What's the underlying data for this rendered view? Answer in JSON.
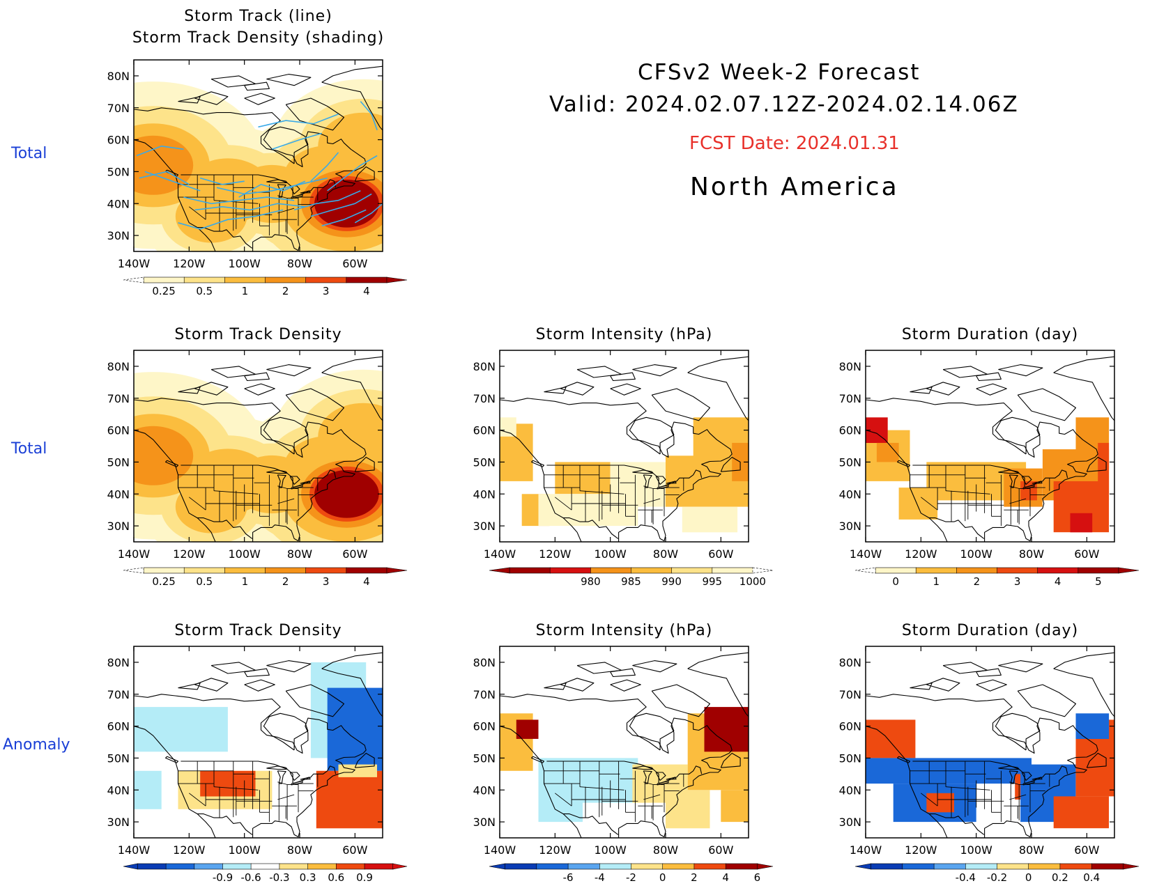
{
  "header": {
    "line1": "CFSv2 Week-2 Forecast",
    "line2": "Valid: 2024.02.07.12Z-2024.02.14.06Z",
    "fcst_date": "FCST Date: 2024.01.31",
    "region": "North America"
  },
  "row_labels": [
    "Total",
    "Total",
    "Anomaly"
  ],
  "axes": {
    "lat_ticks": [
      "80N",
      "70N",
      "60N",
      "50N",
      "40N",
      "30N"
    ],
    "lon_ticks": [
      "140W",
      "120W",
      "100W",
      "80W",
      "60W"
    ],
    "lon_range": [
      -140,
      -50
    ],
    "lat_range": [
      25,
      85
    ]
  },
  "colors": {
    "red_dark": "#a00000",
    "red": "#d61010",
    "orange_red": "#ee4a10",
    "orange": "#f5931a",
    "light_orange": "#fbbd3e",
    "yellow": "#fde38a",
    "pale_yellow": "#fef6c8",
    "light_blue": "#b4ecf7",
    "mid_blue": "#5aa5ef",
    "blue": "#1a68d8",
    "dark_blue": "#0a3cb4",
    "track_line": "#3aaae8"
  },
  "chart_data": [
    {
      "id": "track_total",
      "type": "heatmap",
      "title": "Storm Track (line)",
      "subtitle": "Storm Track Density (shading)",
      "colorbar": {
        "labels": [
          "0.25",
          "0.5",
          "1",
          "2",
          "3",
          "4"
        ]
      },
      "tracks": [
        [
          [
            -139,
            55
          ],
          [
            -130,
            58
          ],
          [
            -122,
            57
          ]
        ],
        [
          [
            -136,
            50
          ],
          [
            -126,
            47
          ],
          [
            -116,
            44
          ]
        ],
        [
          [
            -138,
            48
          ],
          [
            -128,
            50
          ],
          [
            -120,
            46
          ]
        ],
        [
          [
            -122,
            42
          ],
          [
            -112,
            40
          ],
          [
            -102,
            41
          ],
          [
            -92,
            42
          ],
          [
            -82,
            41
          ]
        ],
        [
          [
            -118,
            38
          ],
          [
            -108,
            39
          ],
          [
            -98,
            38
          ],
          [
            -88,
            40
          ],
          [
            -78,
            39
          ]
        ],
        [
          [
            -124,
            34
          ],
          [
            -116,
            32
          ],
          [
            -106,
            35
          ],
          [
            -96,
            36
          ],
          [
            -86,
            38
          ]
        ],
        [
          [
            -110,
            45
          ],
          [
            -100,
            43
          ],
          [
            -90,
            44
          ],
          [
            -80,
            46
          ],
          [
            -70,
            48
          ]
        ],
        [
          [
            -82,
            38
          ],
          [
            -74,
            40
          ],
          [
            -66,
            41
          ],
          [
            -58,
            44
          ]
        ],
        [
          [
            -76,
            36
          ],
          [
            -68,
            38
          ],
          [
            -60,
            40
          ],
          [
            -54,
            43
          ]
        ],
        [
          [
            -72,
            33
          ],
          [
            -64,
            35
          ],
          [
            -56,
            38
          ]
        ],
        [
          [
            -70,
            44
          ],
          [
            -64,
            48
          ],
          [
            -58,
            52
          ],
          [
            -52,
            55
          ]
        ],
        [
          [
            -76,
            47
          ],
          [
            -70,
            52
          ],
          [
            -66,
            56
          ]
        ],
        [
          [
            -95,
            64
          ],
          [
            -85,
            66
          ],
          [
            -75,
            65
          ],
          [
            -66,
            68
          ]
        ],
        [
          [
            -90,
            57
          ],
          [
            -80,
            60
          ],
          [
            -72,
            62
          ]
        ],
        [
          [
            -58,
            72
          ],
          [
            -54,
            68
          ],
          [
            -52,
            63
          ]
        ],
        [
          [
            -102,
            42
          ],
          [
            -94,
            46
          ],
          [
            -86,
            44
          ],
          [
            -78,
            47
          ]
        ],
        [
          [
            -116,
            48
          ],
          [
            -108,
            46
          ],
          [
            -100,
            47
          ]
        ],
        [
          [
            -60,
            34
          ],
          [
            -54,
            37
          ],
          [
            -50,
            40
          ]
        ]
      ],
      "density": [
        {
          "lon": -133,
          "lat": 52,
          "value": 2.5
        },
        {
          "lon": -106,
          "lat": 44,
          "value": 1.5
        },
        {
          "lon": -90,
          "lat": 43,
          "value": 1.2
        },
        {
          "lon": -112,
          "lat": 36,
          "value": 1.0
        },
        {
          "lon": -63,
          "lat": 40,
          "value": 4.5
        },
        {
          "lon": -70,
          "lat": 48,
          "value": 1.5
        },
        {
          "lon": -57,
          "lat": 58,
          "value": 1.6
        },
        {
          "lon": -80,
          "lat": 36,
          "value": 0.8
        }
      ]
    },
    {
      "id": "density_total",
      "type": "heatmap",
      "title": "Storm Track Density",
      "colorbar": {
        "labels": [
          "0.25",
          "0.5",
          "1",
          "2",
          "3",
          "4"
        ]
      },
      "density": [
        {
          "lon": -133,
          "lat": 52,
          "value": 2.5
        },
        {
          "lon": -106,
          "lat": 44,
          "value": 1.5
        },
        {
          "lon": -90,
          "lat": 43,
          "value": 1.2
        },
        {
          "lon": -112,
          "lat": 36,
          "value": 1.0
        },
        {
          "lon": -63,
          "lat": 40,
          "value": 4.5
        },
        {
          "lon": -70,
          "lat": 48,
          "value": 1.5
        },
        {
          "lon": -57,
          "lat": 58,
          "value": 1.6
        },
        {
          "lon": -80,
          "lat": 36,
          "value": 0.8
        }
      ]
    },
    {
      "id": "intensity_total",
      "type": "heatmap",
      "title": "Storm Intensity (hPa)",
      "colorbar": {
        "labels": [
          "980",
          "985",
          "990",
          "995",
          "1000"
        ]
      },
      "cells": [
        {
          "lon": [
            -140,
            -128
          ],
          "lat": [
            44,
            62
          ],
          "value": 993
        },
        {
          "lon": [
            -140,
            -134
          ],
          "lat": [
            58,
            64
          ],
          "value": 996
        },
        {
          "lon": [
            -132,
            -122
          ],
          "lat": [
            30,
            40
          ],
          "value": 994
        },
        {
          "lon": [
            -120,
            -100
          ],
          "lat": [
            40,
            50
          ],
          "value": 994
        },
        {
          "lon": [
            -126,
            -90
          ],
          "lat": [
            30,
            40
          ],
          "value": 998
        },
        {
          "lon": [
            -100,
            -76
          ],
          "lat": [
            36,
            50
          ],
          "value": 998
        },
        {
          "lon": [
            -80,
            -50
          ],
          "lat": [
            36,
            52
          ],
          "value": 992
        },
        {
          "lon": [
            -70,
            -50
          ],
          "lat": [
            50,
            64
          ],
          "value": 991
        },
        {
          "lon": [
            -56,
            -50
          ],
          "lat": [
            44,
            56
          ],
          "value": 987
        },
        {
          "lon": [
            -74,
            -54
          ],
          "lat": [
            28,
            36
          ],
          "value": 997
        }
      ]
    },
    {
      "id": "duration_total",
      "type": "heatmap",
      "title": "Storm Duration (day)",
      "colorbar": {
        "labels": [
          "0",
          "1",
          "2",
          "3",
          "4",
          "5"
        ]
      },
      "cells": [
        {
          "lon": [
            -140,
            -124
          ],
          "lat": [
            44,
            60
          ],
          "value": 1.6
        },
        {
          "lon": [
            -140,
            -132
          ],
          "lat": [
            56,
            64
          ],
          "value": 4.2
        },
        {
          "lon": [
            -136,
            -128
          ],
          "lat": [
            50,
            56
          ],
          "value": 2.8
        },
        {
          "lon": [
            -128,
            -114
          ],
          "lat": [
            32,
            42
          ],
          "value": 1.4
        },
        {
          "lon": [
            -118,
            -82
          ],
          "lat": [
            38,
            50
          ],
          "value": 1.6
        },
        {
          "lon": [
            -90,
            -76
          ],
          "lat": [
            36,
            48
          ],
          "value": 2.6
        },
        {
          "lon": [
            -84,
            -78
          ],
          "lat": [
            38,
            44
          ],
          "value": 3.6
        },
        {
          "lon": [
            -76,
            -52
          ],
          "lat": [
            38,
            54
          ],
          "value": 2.6
        },
        {
          "lon": [
            -64,
            -52
          ],
          "lat": [
            48,
            64
          ],
          "value": 2.3
        },
        {
          "lon": [
            -72,
            -52
          ],
          "lat": [
            28,
            44
          ],
          "value": 3.6
        },
        {
          "lon": [
            -66,
            -58
          ],
          "lat": [
            28,
            34
          ],
          "value": 4.3
        },
        {
          "lon": [
            -56,
            -52
          ],
          "lat": [
            40,
            56
          ],
          "value": 3.8
        }
      ]
    },
    {
      "id": "density_anom",
      "type": "heatmap",
      "title": "Storm Track Density",
      "colorbar": {
        "labels": [
          "-0.9",
          "-0.6",
          "-0.3",
          "0.3",
          "0.6",
          "0.9"
        ]
      },
      "cells": [
        {
          "lon": [
            -140,
            -106
          ],
          "lat": [
            52,
            66
          ],
          "value": -0.35
        },
        {
          "lon": [
            -76,
            -56
          ],
          "lat": [
            50,
            80
          ],
          "value": -0.35
        },
        {
          "lon": [
            -70,
            -50
          ],
          "lat": [
            46,
            72
          ],
          "value": -0.65
        },
        {
          "lon": [
            -140,
            -130
          ],
          "lat": [
            34,
            46
          ],
          "value": -0.35
        },
        {
          "lon": [
            -124,
            -90
          ],
          "lat": [
            34,
            46
          ],
          "value": 0.45
        },
        {
          "lon": [
            -116,
            -96
          ],
          "lat": [
            38,
            46
          ],
          "value": 0.75
        },
        {
          "lon": [
            -74,
            -50
          ],
          "lat": [
            28,
            46
          ],
          "value": 0.75
        },
        {
          "lon": [
            -66,
            -52
          ],
          "lat": [
            44,
            48
          ],
          "value": 0.45
        }
      ]
    },
    {
      "id": "intensity_anom",
      "type": "heatmap",
      "title": "Storm Intensity (hPa)",
      "colorbar": {
        "labels": [
          "-6",
          "-4",
          "-2",
          "0",
          "2",
          "4",
          "6"
        ]
      },
      "cells": [
        {
          "lon": [
            -140,
            -128
          ],
          "lat": [
            46,
            64
          ],
          "value": 3.5
        },
        {
          "lon": [
            -134,
            -126
          ],
          "lat": [
            56,
            62
          ],
          "value": 6.5
        },
        {
          "lon": [
            -126,
            -90
          ],
          "lat": [
            36,
            50
          ],
          "value": -1.0
        },
        {
          "lon": [
            -126,
            -110
          ],
          "lat": [
            30,
            38
          ],
          "value": -1.5
        },
        {
          "lon": [
            -92,
            -72
          ],
          "lat": [
            36,
            48
          ],
          "value": 1.2
        },
        {
          "lon": [
            -80,
            -64
          ],
          "lat": [
            28,
            40
          ],
          "value": 1.3
        },
        {
          "lon": [
            -72,
            -50
          ],
          "lat": [
            40,
            64
          ],
          "value": 3.5
        },
        {
          "lon": [
            -66,
            -50
          ],
          "lat": [
            52,
            66
          ],
          "value": 6.5
        },
        {
          "lon": [
            -60,
            -50
          ],
          "lat": [
            30,
            40
          ],
          "value": 2.5
        }
      ]
    },
    {
      "id": "duration_anom",
      "type": "heatmap",
      "title": "Storm Duration (day)",
      "colorbar": {
        "labels": [
          "-0.4",
          "-0.2",
          "0",
          "0.2",
          "0.4"
        ]
      },
      "cells": [
        {
          "lon": [
            -140,
            -122
          ],
          "lat": [
            50,
            62
          ],
          "value": 0.35
        },
        {
          "lon": [
            -140,
            -80
          ],
          "lat": [
            42,
            50
          ],
          "value": -0.35
        },
        {
          "lon": [
            -130,
            -100
          ],
          "lat": [
            30,
            42
          ],
          "value": -0.35
        },
        {
          "lon": [
            -118,
            -108
          ],
          "lat": [
            33,
            39
          ],
          "value": 0.35
        },
        {
          "lon": [
            -86,
            -78
          ],
          "lat": [
            37,
            45
          ],
          "value": 0.3
        },
        {
          "lon": [
            -84,
            -64
          ],
          "lat": [
            30,
            48
          ],
          "value": -0.35
        },
        {
          "lon": [
            -64,
            -50
          ],
          "lat": [
            38,
            62
          ],
          "value": 0.35
        },
        {
          "lon": [
            -72,
            -52
          ],
          "lat": [
            28,
            38
          ],
          "value": 0.35
        },
        {
          "lon": [
            -64,
            -52
          ],
          "lat": [
            56,
            64
          ],
          "value": -0.35
        }
      ]
    }
  ]
}
